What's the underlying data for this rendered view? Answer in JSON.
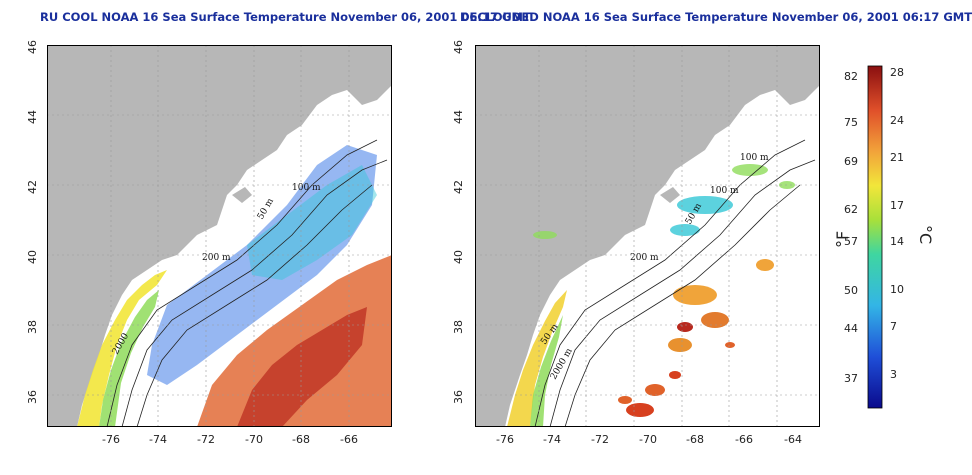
{
  "left": {
    "title": "RU COOL NOAA 16 Sea Surface Temperature November 06, 2001 06:17 GMT",
    "contour_labels": [
      "100 m",
      "200 m",
      "50 m",
      "2000"
    ]
  },
  "right": {
    "title": "DECLOUDED NOAA 16 Sea Surface Temperature November 06, 2001 06:17 GMT",
    "contour_labels": [
      "100 m",
      "100 m",
      "50 m",
      "200 m",
      "50 m",
      "2000 m"
    ]
  },
  "axes": {
    "x_ticks": [
      "-76",
      "-74",
      "-72",
      "-70",
      "-68",
      "-66",
      "-64"
    ],
    "y_ticks": [
      "46",
      "44",
      "42",
      "40",
      "38",
      "36"
    ],
    "xlim": [
      -77.5,
      -63.2
    ],
    "ylim": [
      35,
      46
    ]
  },
  "colorbar": {
    "f_unit": "°F",
    "c_unit": "°C",
    "f_ticks": [
      "82",
      "75",
      "69",
      "62",
      "57",
      "50",
      "44",
      "37"
    ],
    "c_ticks": [
      "28",
      "24",
      "21",
      "17",
      "14",
      "10",
      "7",
      "3"
    ],
    "c_range": [
      0,
      29
    ]
  },
  "colors": {
    "land": "#b7b7b7",
    "title": "#1a2f9c",
    "warm": "#d7301f",
    "cool": "#1f4fd8"
  }
}
